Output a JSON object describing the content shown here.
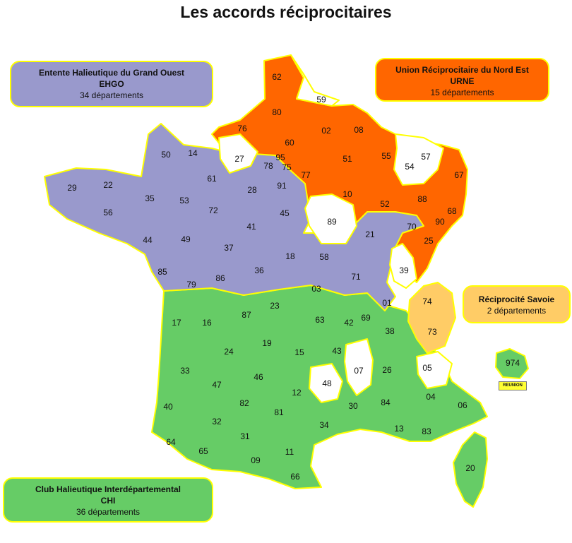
{
  "title": "Les accords réciprocitaires",
  "colors": {
    "ehgo": "#9999cc",
    "urne": "#ff6600",
    "savoie": "#ffcc66",
    "chi": "#66cc66",
    "none": "#ffffff",
    "border": "#ffff00"
  },
  "legends": {
    "ehgo": {
      "line1": "Entente Halieutique du Grand Ouest",
      "line2": "EHGO",
      "line3": "34 départements"
    },
    "urne": {
      "line1": "Union Réciprocitaire du Nord Est",
      "line2": "URNE",
      "line3": "15 départements"
    },
    "savoie": {
      "line1": "Réciprocité Savoie",
      "line2": "2 départements"
    },
    "chi": {
      "line1": "Club Halieutique Interdépartemental",
      "line2": "CHI",
      "line3": "36 départements"
    }
  },
  "reunion_label": "REUNION",
  "departments": [
    {
      "code": "62",
      "group": "urne"
    },
    {
      "code": "59",
      "group": "none"
    },
    {
      "code": "80",
      "group": "urne"
    },
    {
      "code": "76",
      "group": "urne"
    },
    {
      "code": "02",
      "group": "urne"
    },
    {
      "code": "60",
      "group": "urne"
    },
    {
      "code": "08",
      "group": "urne"
    },
    {
      "code": "51",
      "group": "urne"
    },
    {
      "code": "55",
      "group": "urne"
    },
    {
      "code": "57",
      "group": "none"
    },
    {
      "code": "54",
      "group": "none"
    },
    {
      "code": "67",
      "group": "urne"
    },
    {
      "code": "77",
      "group": "urne"
    },
    {
      "code": "10",
      "group": "urne"
    },
    {
      "code": "52",
      "group": "urne"
    },
    {
      "code": "88",
      "group": "urne"
    },
    {
      "code": "68",
      "group": "urne"
    },
    {
      "code": "25",
      "group": "urne"
    },
    {
      "code": "27",
      "group": "none"
    },
    {
      "code": "95",
      "group": "ehgo"
    },
    {
      "code": "78",
      "group": "ehgo"
    },
    {
      "code": "75",
      "group": "ehgo"
    },
    {
      "code": "91",
      "group": "ehgo"
    },
    {
      "code": "50",
      "group": "ehgo"
    },
    {
      "code": "14",
      "group": "ehgo"
    },
    {
      "code": "61",
      "group": "ehgo"
    },
    {
      "code": "29",
      "group": "ehgo"
    },
    {
      "code": "22",
      "group": "ehgo"
    },
    {
      "code": "35",
      "group": "ehgo"
    },
    {
      "code": "56",
      "group": "ehgo"
    },
    {
      "code": "53",
      "group": "ehgo"
    },
    {
      "code": "72",
      "group": "ehgo"
    },
    {
      "code": "28",
      "group": "ehgo"
    },
    {
      "code": "45",
      "group": "ehgo"
    },
    {
      "code": "41",
      "group": "ehgo"
    },
    {
      "code": "44",
      "group": "ehgo"
    },
    {
      "code": "49",
      "group": "ehgo"
    },
    {
      "code": "37",
      "group": "ehgo"
    },
    {
      "code": "18",
      "group": "ehgo"
    },
    {
      "code": "85",
      "group": "ehgo"
    },
    {
      "code": "79",
      "group": "ehgo"
    },
    {
      "code": "86",
      "group": "ehgo"
    },
    {
      "code": "36",
      "group": "ehgo"
    },
    {
      "code": "89",
      "group": "none"
    },
    {
      "code": "58",
      "group": "ehgo"
    },
    {
      "code": "21",
      "group": "ehgo"
    },
    {
      "code": "70",
      "group": "ehgo"
    },
    {
      "code": "90",
      "group": "ehgo"
    },
    {
      "code": "71",
      "group": "ehgo"
    },
    {
      "code": "03",
      "group": "ehgo"
    },
    {
      "code": "39",
      "group": "none"
    },
    {
      "code": "01",
      "group": "ehgo"
    },
    {
      "code": "74",
      "group": "savoie"
    },
    {
      "code": "73",
      "group": "savoie"
    },
    {
      "code": "17",
      "group": "chi"
    },
    {
      "code": "16",
      "group": "chi"
    },
    {
      "code": "87",
      "group": "chi"
    },
    {
      "code": "23",
      "group": "chi"
    },
    {
      "code": "63",
      "group": "chi"
    },
    {
      "code": "42",
      "group": "chi"
    },
    {
      "code": "69",
      "group": "chi"
    },
    {
      "code": "38",
      "group": "chi"
    },
    {
      "code": "19",
      "group": "chi"
    },
    {
      "code": "24",
      "group": "chi"
    },
    {
      "code": "15",
      "group": "chi"
    },
    {
      "code": "43",
      "group": "chi"
    },
    {
      "code": "07",
      "group": "none"
    },
    {
      "code": "26",
      "group": "chi"
    },
    {
      "code": "05",
      "group": "none"
    },
    {
      "code": "33",
      "group": "chi"
    },
    {
      "code": "47",
      "group": "chi"
    },
    {
      "code": "46",
      "group": "chi"
    },
    {
      "code": "48",
      "group": "none"
    },
    {
      "code": "12",
      "group": "chi"
    },
    {
      "code": "40",
      "group": "chi"
    },
    {
      "code": "82",
      "group": "chi"
    },
    {
      "code": "81",
      "group": "chi"
    },
    {
      "code": "30",
      "group": "chi"
    },
    {
      "code": "84",
      "group": "chi"
    },
    {
      "code": "04",
      "group": "chi"
    },
    {
      "code": "06",
      "group": "chi"
    },
    {
      "code": "32",
      "group": "chi"
    },
    {
      "code": "34",
      "group": "chi"
    },
    {
      "code": "13",
      "group": "chi"
    },
    {
      "code": "83",
      "group": "chi"
    },
    {
      "code": "64",
      "group": "chi"
    },
    {
      "code": "65",
      "group": "chi"
    },
    {
      "code": "31",
      "group": "chi"
    },
    {
      "code": "09",
      "group": "chi"
    },
    {
      "code": "11",
      "group": "chi"
    },
    {
      "code": "66",
      "group": "chi"
    },
    {
      "code": "20",
      "group": "chi"
    },
    {
      "code": "974",
      "group": "chi"
    }
  ]
}
